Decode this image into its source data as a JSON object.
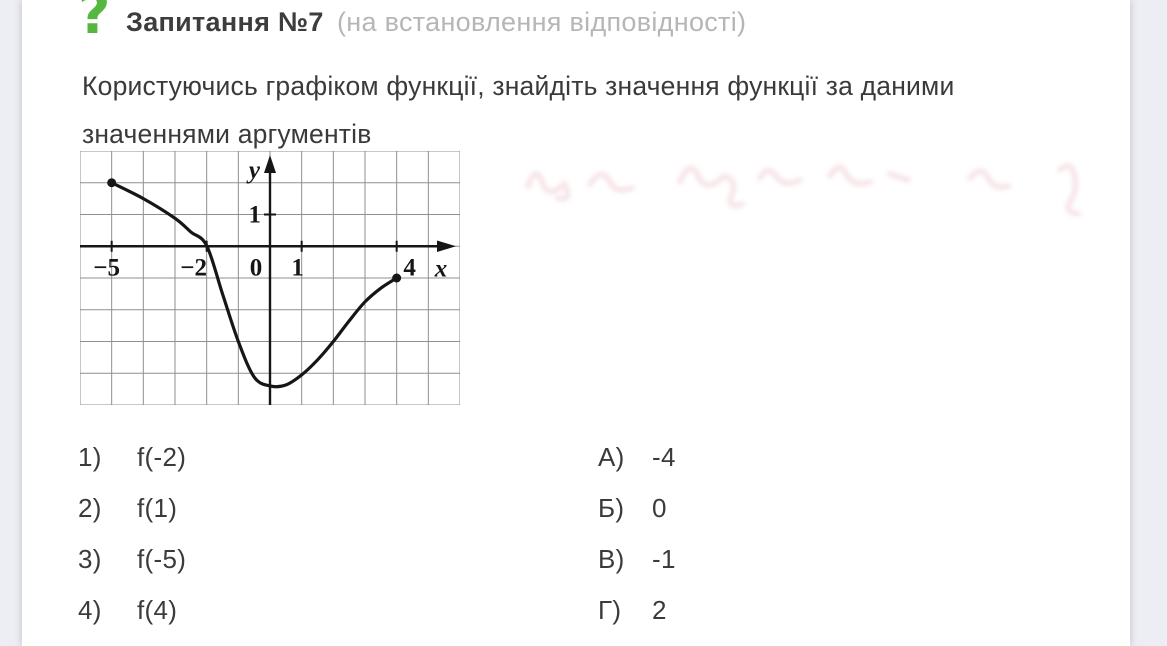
{
  "header": {
    "icon_glyph": "?",
    "icon_color": "#55b640",
    "title": "Запитання №7",
    "subtitle": "(на встановлення відповідності)"
  },
  "question": {
    "text": "Користуючись графіком функції, знайдіть значення функції за даними значеннями аргументів"
  },
  "chart_data": {
    "type": "line",
    "title": "",
    "xlabel": "x",
    "ylabel": "y",
    "xlim": [
      -6,
      6
    ],
    "ylim": [
      -5,
      3
    ],
    "grid": true,
    "grid_cells": {
      "cols": 12,
      "rows": 8,
      "origin_col": 6,
      "origin_row": 3
    },
    "x_ticks": [
      {
        "v": -5,
        "t": "−5",
        "dx": -5
      },
      {
        "v": -2,
        "t": "−2",
        "dx": -13
      },
      {
        "v": 0,
        "t": "0",
        "dx": -14
      },
      {
        "v": 1,
        "t": "1",
        "dx": -4
      },
      {
        "v": 4,
        "t": "4",
        "dx": 13
      }
    ],
    "y_ticks": [
      {
        "v": 1,
        "t": "1"
      }
    ],
    "points": [
      [
        -5,
        2
      ],
      [
        -4,
        1.5
      ],
      [
        -3,
        0.88
      ],
      [
        -2.5,
        0.45
      ],
      [
        -2,
        0.02
      ],
      [
        -1.5,
        -1.5
      ],
      [
        -1,
        -3.0
      ],
      [
        -0.5,
        -4.12
      ],
      [
        0,
        -4.4
      ],
      [
        0.5,
        -4.37
      ],
      [
        1,
        -4.05
      ],
      [
        1.5,
        -3.58
      ],
      [
        2,
        -3.0
      ],
      [
        2.5,
        -2.35
      ],
      [
        3,
        -1.75
      ],
      [
        3.5,
        -1.32
      ],
      [
        4,
        -1
      ]
    ],
    "endpoint_dots": [
      [
        -5,
        2
      ],
      [
        4,
        -1
      ]
    ],
    "key_values": {
      "f(-5)": 2,
      "f(-2)": 0,
      "f(1)": -4,
      "f(4)": -1
    },
    "colors": {
      "curve": "#161616",
      "axis": "#161616",
      "grid": "#8f8f8f"
    }
  },
  "matching": {
    "prompts": [
      {
        "num": "1)",
        "expr": "f(-2)"
      },
      {
        "num": "2)",
        "expr": "f(1)"
      },
      {
        "num": "3)",
        "expr": "f(-5)"
      },
      {
        "num": "4)",
        "expr": "f(4)"
      }
    ],
    "answers": [
      {
        "letter": "А)",
        "value": "-4"
      },
      {
        "letter": "Б)",
        "value": "0"
      },
      {
        "letter": "В)",
        "value": "-1"
      },
      {
        "letter": "Г)",
        "value": "2"
      }
    ]
  }
}
